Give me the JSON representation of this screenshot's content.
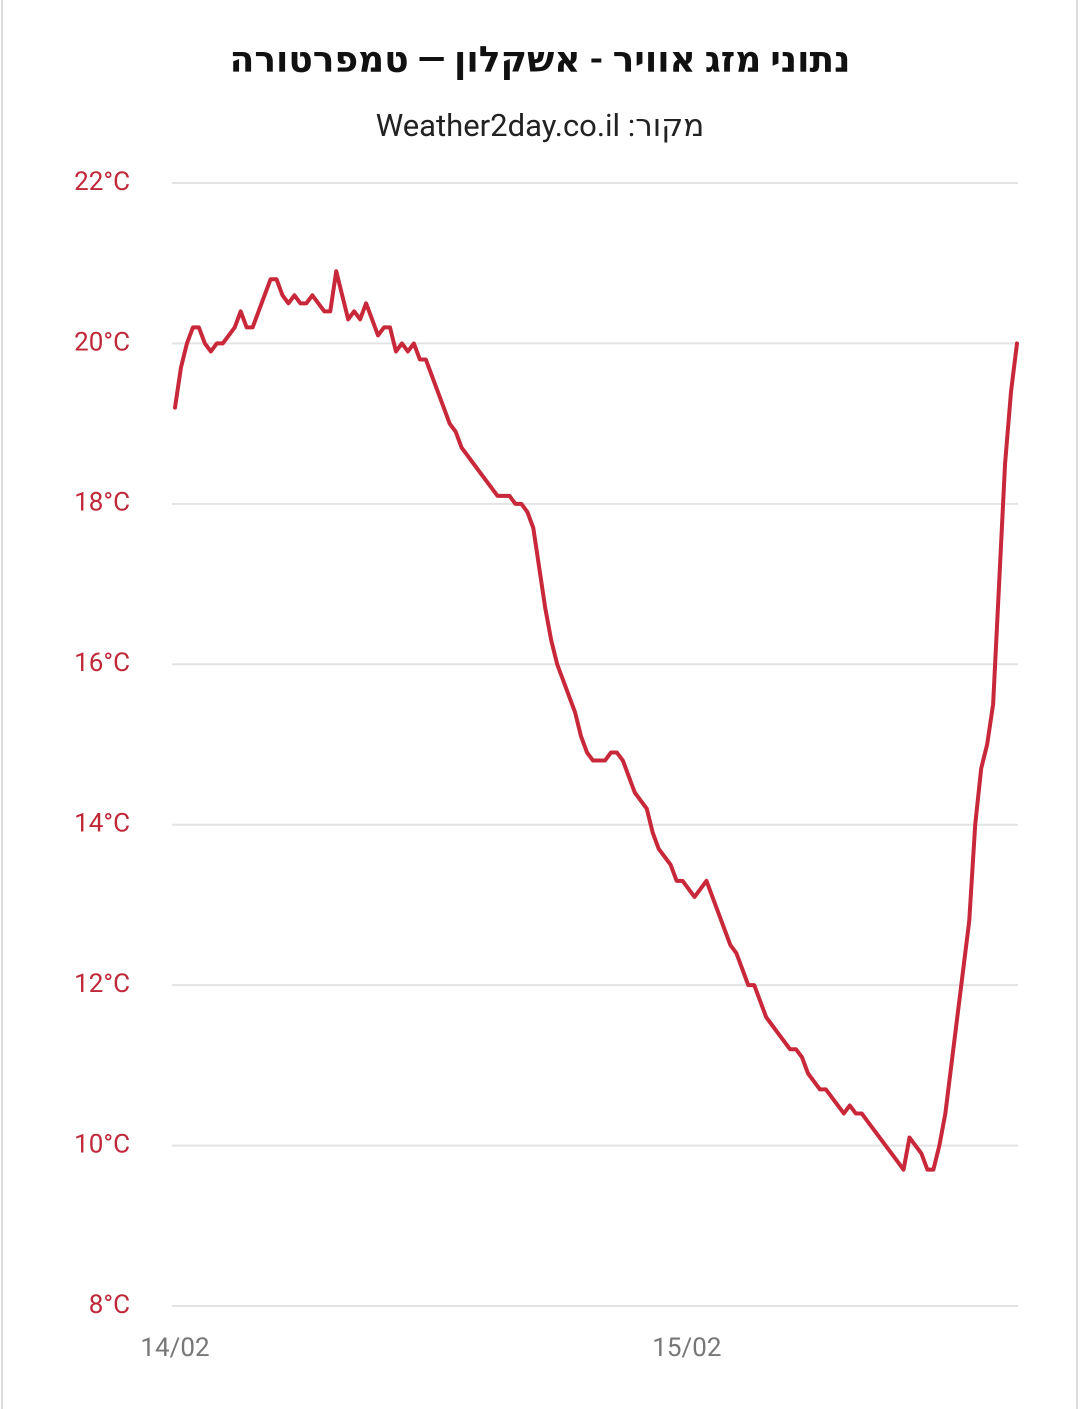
{
  "chart_data": {
    "type": "line",
    "title": "נתוני מזג אוויר - אשקלון — טמפרטורה",
    "subtitle": "מקור: Weather2day.co.il",
    "x": [
      0,
      0.28,
      0.56,
      0.84,
      1.12,
      1.4,
      1.68,
      1.96,
      2.24,
      2.52,
      2.8,
      3.08,
      3.36,
      3.64,
      3.92,
      4.2,
      4.48,
      4.76,
      5.04,
      5.32,
      5.6,
      5.88,
      6.16,
      6.44,
      6.72,
      7,
      7.28,
      7.56,
      7.84,
      8.12,
      8.4,
      8.68,
      8.96,
      9.24,
      9.52,
      9.8,
      10.08,
      10.36,
      10.64,
      10.92,
      11.2,
      11.48,
      11.76,
      12.04,
      12.32,
      12.6,
      12.88,
      13.16,
      13.44,
      13.72,
      14,
      14.28,
      14.56,
      14.84,
      15.12,
      15.4,
      15.68,
      15.96,
      16.24,
      16.52,
      16.8,
      17.08,
      17.36,
      17.64,
      17.92,
      18.2,
      18.48,
      18.76,
      19.04,
      19.32,
      19.6,
      19.88,
      20.16,
      20.44,
      20.72,
      21,
      21.28,
      21.56,
      21.84,
      22.12,
      22.4,
      22.68,
      22.96,
      23.24,
      23.52,
      23.8,
      24.08,
      24.36,
      24.64,
      24.92,
      25.2,
      25.48,
      25.76,
      26.04,
      26.32,
      26.6,
      26.88,
      27.16,
      27.44,
      27.72,
      28,
      28.28,
      28.56,
      28.84,
      29.12,
      29.4,
      29.68,
      29.96,
      30.24,
      30.52,
      30.8,
      31.08,
      31.36,
      31.64,
      31.92,
      32.2,
      32.48,
      32.76,
      33.04,
      33.32,
      33.6,
      33.88,
      34.16,
      34.44,
      34.72,
      35,
      35.28,
      35.56,
      35.84,
      36.12,
      36.4,
      36.68,
      36.96,
      37.24,
      37.52,
      37.8,
      38.08,
      38.36,
      38.64,
      38.92,
      39.2,
      39.48
    ],
    "series": [
      {
        "color": "#c8283a",
        "values": [
          19.2,
          19.7,
          20.0,
          20.2,
          20.2,
          20.0,
          19.9,
          20.0,
          20.0,
          20.1,
          20.2,
          20.4,
          20.2,
          20.2,
          20.4,
          20.6,
          20.8,
          20.8,
          20.6,
          20.5,
          20.6,
          20.5,
          20.5,
          20.6,
          20.5,
          20.4,
          20.4,
          20.9,
          20.6,
          20.3,
          20.4,
          20.3,
          20.5,
          20.3,
          20.1,
          20.2,
          20.2,
          19.9,
          20.0,
          19.9,
          20.0,
          19.8,
          19.8,
          19.6,
          19.4,
          19.2,
          19.0,
          18.9,
          18.7,
          18.6,
          18.5,
          18.4,
          18.3,
          18.2,
          18.1,
          18.1,
          18.1,
          18.0,
          18.0,
          17.9,
          17.7,
          17.2,
          16.7,
          16.3,
          16.0,
          15.8,
          15.6,
          15.4,
          15.1,
          14.9,
          14.8,
          14.8,
          14.8,
          14.9,
          14.9,
          14.8,
          14.6,
          14.4,
          14.3,
          14.2,
          13.9,
          13.7,
          13.6,
          13.5,
          13.3,
          13.3,
          13.2,
          13.1,
          13.2,
          13.3,
          13.1,
          12.9,
          12.7,
          12.5,
          12.4,
          12.2,
          12.0,
          12.0,
          11.8,
          11.6,
          11.5,
          11.4,
          11.3,
          11.2,
          11.2,
          11.1,
          10.9,
          10.8,
          10.7,
          10.7,
          10.6,
          10.5,
          10.4,
          10.5,
          10.4,
          10.4,
          10.3,
          10.2,
          10.1,
          10.0,
          9.9,
          9.8,
          9.7,
          10.1,
          10.0,
          9.9,
          9.7,
          9.7,
          10.0,
          10.4,
          11.0,
          11.6,
          12.2,
          12.8,
          14.0,
          14.7,
          15.0,
          15.5,
          17.0,
          18.5,
          19.4,
          20.0
        ]
      }
    ],
    "xlim": [
      0,
      39.48
    ],
    "xticks": [
      {
        "value": 0,
        "label": "14/02"
      },
      {
        "value": 24,
        "label": "15/02"
      }
    ],
    "ylim": [
      8,
      22
    ],
    "yticks": [
      {
        "value": 8,
        "label": "8°C"
      },
      {
        "value": 10,
        "label": "10°C"
      },
      {
        "value": 12,
        "label": "12°C"
      },
      {
        "value": 14,
        "label": "14°C"
      },
      {
        "value": 16,
        "label": "16°C"
      },
      {
        "value": 18,
        "label": "18°C"
      },
      {
        "value": 20,
        "label": "20°C"
      },
      {
        "value": 22,
        "label": "22°C"
      }
    ],
    "grid": true
  }
}
